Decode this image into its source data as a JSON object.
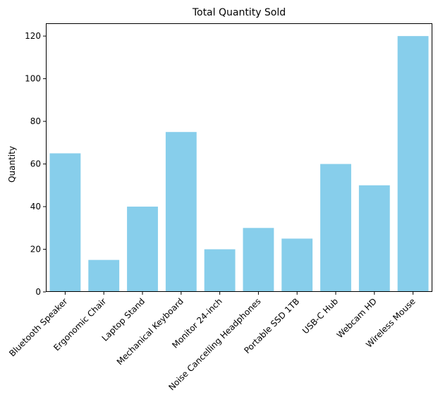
{
  "chart_data": {
    "type": "bar",
    "title": "Total Quantity Sold",
    "xlabel": "",
    "ylabel": "Quantity",
    "categories": [
      "Bluetooth Speaker",
      "Ergonomic Chair",
      "Laptop Stand",
      "Mechanical Keyboard",
      "Monitor 24-inch",
      "Noise Cancelling Headphones",
      "Portable SSD 1TB",
      "USB-C Hub",
      "Webcam HD",
      "Wireless Mouse"
    ],
    "values": [
      65,
      15,
      40,
      75,
      20,
      30,
      25,
      60,
      50,
      120
    ],
    "ylim": [
      0,
      126
    ],
    "yticks": [
      0,
      20,
      40,
      60,
      80,
      100,
      120
    ],
    "bar_color": "#87ceeb",
    "grid": false,
    "legend": "none"
  }
}
